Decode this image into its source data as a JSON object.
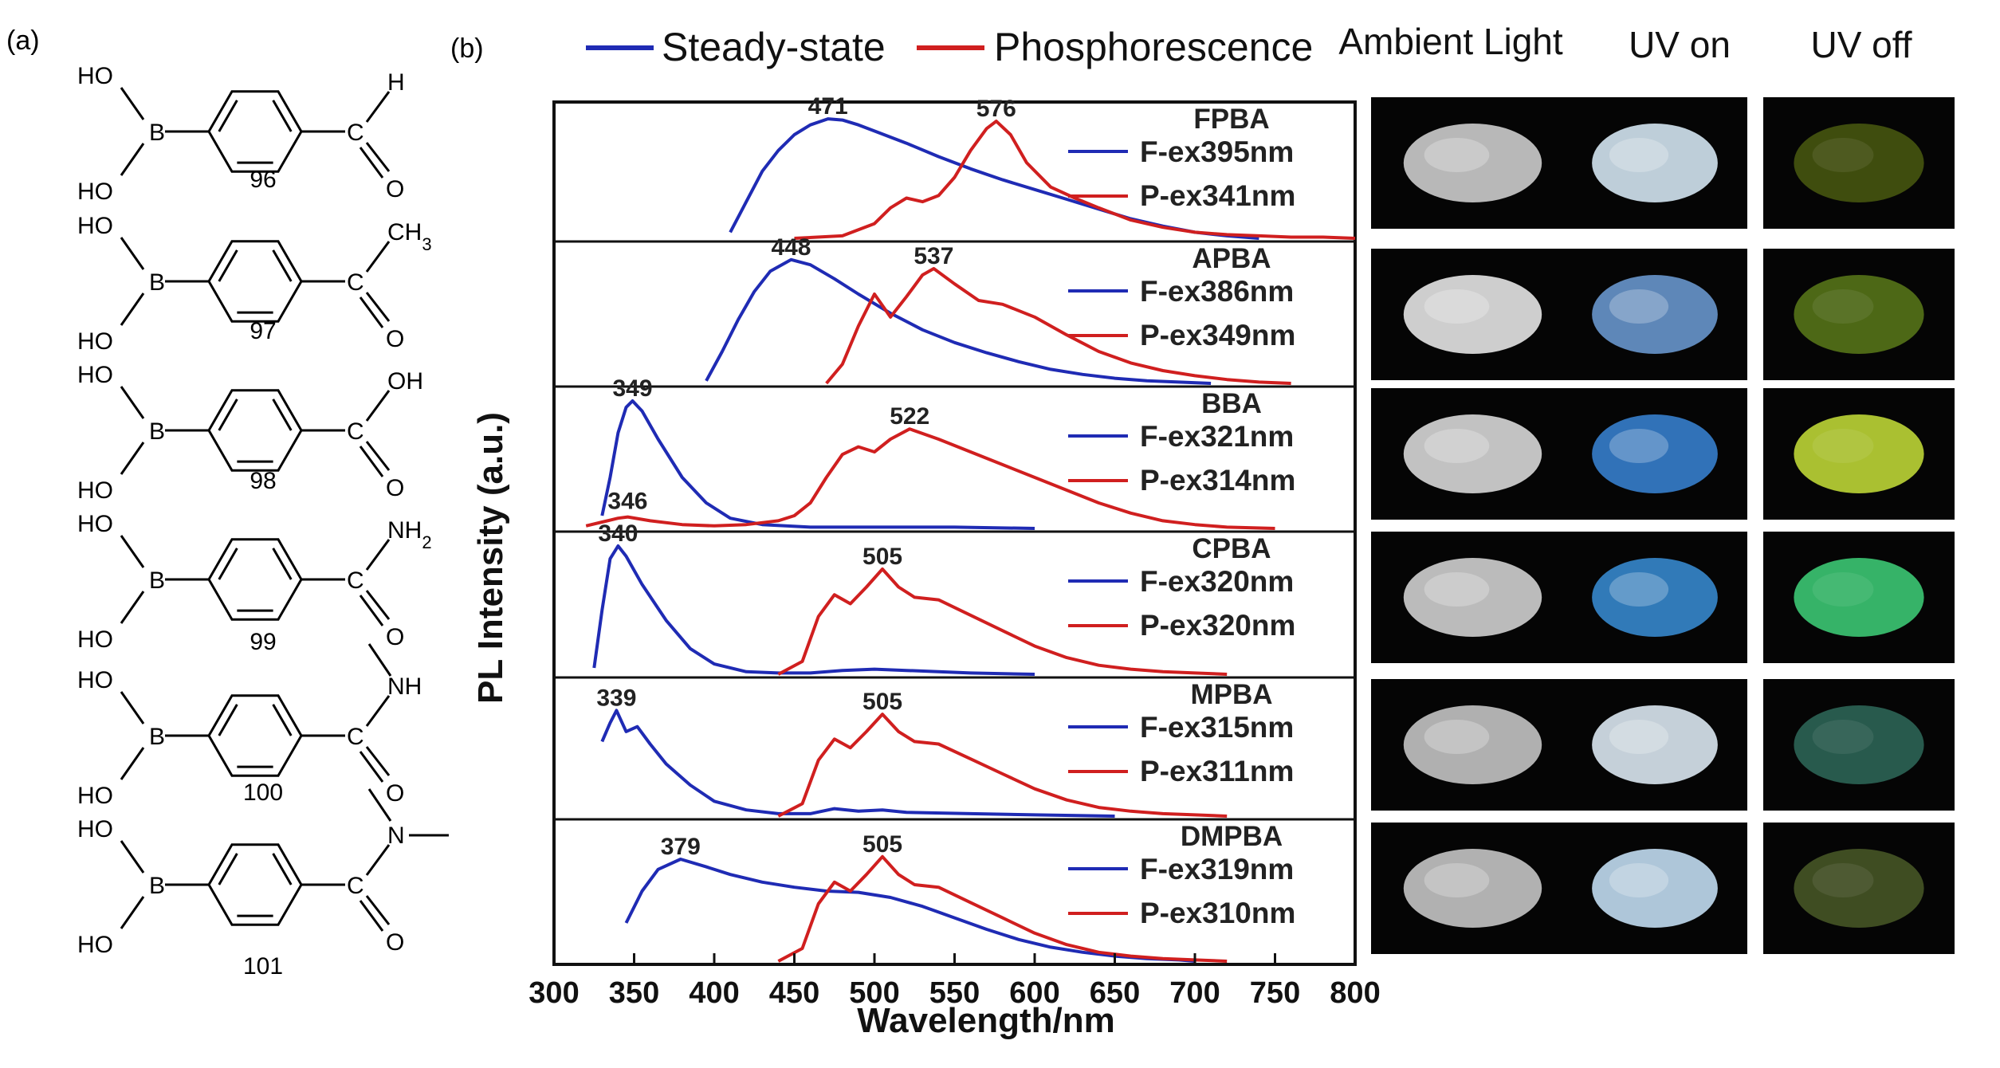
{
  "panel_a_label": "(a)",
  "panel_b_label": "(b)",
  "compounds": [
    {
      "number": "96",
      "top_right": "H",
      "bottom_right": "O"
    },
    {
      "number": "97",
      "top_right": "CH3",
      "bottom_right": "O"
    },
    {
      "number": "98",
      "top_right": "OH",
      "bottom_right": "O"
    },
    {
      "number": "99",
      "top_right": "NH2",
      "bottom_right": "O"
    },
    {
      "number": "100",
      "top_right": "NH",
      "bottom_right": "O"
    },
    {
      "number": "101",
      "top_right": "N",
      "bottom_right": "O"
    }
  ],
  "boronic": {
    "ho": "HO",
    "b": "B",
    "c": "C"
  },
  "photos": {
    "headers": [
      "Ambient Light",
      "UV on",
      "UV off"
    ],
    "rows": [
      {
        "ambient": "#d8d8d8",
        "uv_on": "#dff2ff",
        "uv_off": "#4a5a10"
      },
      {
        "ambient": "#f2f2f2",
        "uv_on": "#6f9fd8",
        "uv_off": "#5a7a1a"
      },
      {
        "ambient": "#e4e4e4",
        "uv_on": "#3a86d8",
        "uv_off": "#c8e23a"
      },
      {
        "ambient": "#dcdcdc",
        "uv_on": "#3a8fd8",
        "uv_off": "#3fd27a"
      },
      {
        "ambient": "#cfcfcf",
        "uv_on": "#e8f4ff",
        "uv_off": "#2f6a5a"
      },
      {
        "ambient": "#d0d0d0",
        "uv_on": "#cde9ff",
        "uv_off": "#4a5a28"
      }
    ]
  },
  "chart_data": {
    "type": "line",
    "xlabel": "Wavelength/nm",
    "ylabel": "PL Intensity (a.u.)",
    "xlim": [
      300,
      800
    ],
    "x_ticks": [
      "300",
      "350",
      "400",
      "450",
      "500",
      "550",
      "600",
      "650",
      "700",
      "750",
      "800"
    ],
    "legend": [
      {
        "name": "Steady-state",
        "color": "#1f2bb4"
      },
      {
        "name": "Phosphorescence",
        "color": "#d01f1f"
      }
    ],
    "series_colors": {
      "fluorescence": "#1f2bb4",
      "phosphorescence": "#d01f1f"
    },
    "panels": [
      {
        "name": "FPBA",
        "f_ex": "F-ex395nm",
        "p_ex": "P-ex341nm",
        "f_peak": {
          "x": 471,
          "label": "471"
        },
        "p_peak": {
          "x": 576,
          "label": "576"
        },
        "fluorescence": {
          "x": [
            410,
            420,
            430,
            440,
            450,
            460,
            471,
            480,
            490,
            500,
            520,
            540,
            560,
            580,
            600,
            620,
            640,
            660,
            680,
            700,
            720,
            740
          ],
          "y": [
            0.05,
            0.3,
            0.55,
            0.72,
            0.85,
            0.93,
            0.98,
            0.97,
            0.93,
            0.88,
            0.78,
            0.67,
            0.57,
            0.48,
            0.4,
            0.32,
            0.24,
            0.16,
            0.1,
            0.05,
            0.02,
            0.0
          ]
        },
        "phosphorescence": {
          "x": [
            450,
            480,
            500,
            510,
            520,
            530,
            540,
            550,
            560,
            570,
            576,
            585,
            595,
            610,
            625,
            640,
            660,
            680,
            700,
            720,
            740,
            760,
            780,
            800
          ],
          "y": [
            0.0,
            0.02,
            0.12,
            0.25,
            0.33,
            0.3,
            0.35,
            0.5,
            0.72,
            0.9,
            0.96,
            0.85,
            0.62,
            0.42,
            0.33,
            0.25,
            0.15,
            0.09,
            0.05,
            0.03,
            0.02,
            0.01,
            0.01,
            0.0
          ]
        }
      },
      {
        "name": "APBA",
        "f_ex": "F-ex386nm",
        "p_ex": "P-ex349nm",
        "f_peak": {
          "x": 448,
          "label": "448"
        },
        "p_peak": {
          "x": 537,
          "label": "537"
        },
        "fluorescence": {
          "x": [
            395,
            405,
            415,
            425,
            435,
            448,
            460,
            475,
            490,
            510,
            530,
            550,
            570,
            590,
            610,
            630,
            650,
            670,
            690,
            710
          ],
          "y": [
            0.02,
            0.25,
            0.5,
            0.72,
            0.88,
            0.97,
            0.93,
            0.82,
            0.7,
            0.55,
            0.42,
            0.32,
            0.24,
            0.17,
            0.11,
            0.07,
            0.04,
            0.02,
            0.01,
            0.0
          ]
        },
        "phosphorescence": {
          "x": [
            470,
            480,
            490,
            500,
            510,
            520,
            530,
            537,
            550,
            565,
            580,
            600,
            620,
            640,
            660,
            680,
            700,
            720,
            740,
            760
          ],
          "y": [
            0.0,
            0.15,
            0.45,
            0.7,
            0.52,
            0.68,
            0.85,
            0.9,
            0.78,
            0.65,
            0.62,
            0.52,
            0.38,
            0.25,
            0.16,
            0.1,
            0.06,
            0.03,
            0.01,
            0.0
          ]
        }
      },
      {
        "name": "BBA",
        "f_ex": "F-ex321nm",
        "p_ex": "P-ex314nm",
        "f_peak": {
          "x": 349,
          "label": "349"
        },
        "p_peak": {
          "x": 522,
          "label": "522"
        },
        "p_low_peak": {
          "x": 346,
          "label": "346"
        },
        "fluorescence": {
          "x": [
            330,
            335,
            340,
            345,
            349,
            355,
            365,
            380,
            395,
            410,
            430,
            460,
            500,
            550,
            600
          ],
          "y": [
            0.1,
            0.4,
            0.75,
            0.95,
            1.0,
            0.92,
            0.7,
            0.4,
            0.2,
            0.08,
            0.03,
            0.01,
            0.01,
            0.01,
            0.0
          ]
        },
        "phosphorescence": {
          "x": [
            320,
            330,
            340,
            346,
            360,
            380,
            400,
            420,
            440,
            450,
            460,
            470,
            480,
            490,
            500,
            510,
            522,
            540,
            560,
            580,
            600,
            620,
            640,
            660,
            680,
            700,
            720,
            750
          ],
          "y": [
            0.02,
            0.05,
            0.08,
            0.09,
            0.06,
            0.03,
            0.02,
            0.03,
            0.06,
            0.1,
            0.2,
            0.4,
            0.58,
            0.64,
            0.6,
            0.7,
            0.78,
            0.7,
            0.6,
            0.5,
            0.4,
            0.3,
            0.2,
            0.12,
            0.06,
            0.03,
            0.01,
            0.0
          ]
        }
      },
      {
        "name": "CPBA",
        "f_ex": "F-ex320nm",
        "p_ex": "P-ex320nm",
        "f_peak": {
          "x": 340,
          "label": "340"
        },
        "p_peak": {
          "x": 505,
          "label": "505"
        },
        "fluorescence": {
          "x": [
            325,
            330,
            335,
            340,
            345,
            355,
            370,
            385,
            400,
            420,
            440,
            460,
            480,
            500,
            520,
            560,
            600
          ],
          "y": [
            0.05,
            0.5,
            0.9,
            1.0,
            0.92,
            0.7,
            0.42,
            0.2,
            0.08,
            0.02,
            0.01,
            0.01,
            0.03,
            0.04,
            0.03,
            0.01,
            0.0
          ]
        },
        "phosphorescence": {
          "x": [
            440,
            455,
            465,
            475,
            485,
            495,
            505,
            515,
            525,
            540,
            560,
            580,
            600,
            620,
            640,
            660,
            680,
            700,
            720
          ],
          "y": [
            0.0,
            0.1,
            0.45,
            0.62,
            0.55,
            0.68,
            0.82,
            0.68,
            0.6,
            0.58,
            0.46,
            0.34,
            0.22,
            0.13,
            0.07,
            0.04,
            0.02,
            0.01,
            0.0
          ]
        }
      },
      {
        "name": "MPBA",
        "f_ex": "F-ex315nm",
        "p_ex": "P-ex311nm",
        "f_peak": {
          "x": 339,
          "label": "339"
        },
        "p_peak": {
          "x": 505,
          "label": "505"
        },
        "fluorescence": {
          "x": [
            330,
            335,
            339,
            345,
            352,
            360,
            370,
            385,
            400,
            420,
            440,
            460,
            475,
            490,
            505,
            520,
            560,
            600,
            650
          ],
          "y": [
            0.6,
            0.75,
            0.85,
            0.68,
            0.72,
            0.58,
            0.42,
            0.25,
            0.12,
            0.05,
            0.02,
            0.02,
            0.06,
            0.04,
            0.05,
            0.03,
            0.02,
            0.01,
            0.0
          ]
        },
        "phosphorescence": {
          "x": [
            440,
            455,
            465,
            475,
            485,
            495,
            505,
            515,
            525,
            540,
            560,
            580,
            600,
            620,
            640,
            660,
            680,
            700,
            720
          ],
          "y": [
            0.0,
            0.1,
            0.45,
            0.62,
            0.55,
            0.68,
            0.82,
            0.68,
            0.6,
            0.58,
            0.46,
            0.34,
            0.22,
            0.13,
            0.07,
            0.04,
            0.02,
            0.01,
            0.0
          ]
        }
      },
      {
        "name": "DMPBA",
        "f_ex": "F-ex319nm",
        "p_ex": "P-ex310nm",
        "f_peak": {
          "x": 379,
          "label": "379"
        },
        "p_peak": {
          "x": 505,
          "label": "505"
        },
        "fluorescence": {
          "x": [
            345,
            355,
            365,
            379,
            395,
            410,
            430,
            450,
            470,
            490,
            510,
            530,
            550,
            570,
            590,
            610,
            630,
            650,
            670,
            690,
            700
          ],
          "y": [
            0.3,
            0.55,
            0.72,
            0.8,
            0.74,
            0.68,
            0.62,
            0.58,
            0.55,
            0.54,
            0.5,
            0.43,
            0.34,
            0.25,
            0.17,
            0.11,
            0.07,
            0.04,
            0.02,
            0.01,
            0.0
          ]
        },
        "phosphorescence": {
          "x": [
            440,
            455,
            465,
            475,
            485,
            495,
            505,
            515,
            525,
            540,
            560,
            580,
            600,
            620,
            640,
            660,
            680,
            700,
            720
          ],
          "y": [
            0.0,
            0.1,
            0.45,
            0.62,
            0.55,
            0.68,
            0.82,
            0.68,
            0.6,
            0.58,
            0.46,
            0.34,
            0.22,
            0.13,
            0.07,
            0.04,
            0.02,
            0.01,
            0.0
          ]
        }
      }
    ]
  }
}
